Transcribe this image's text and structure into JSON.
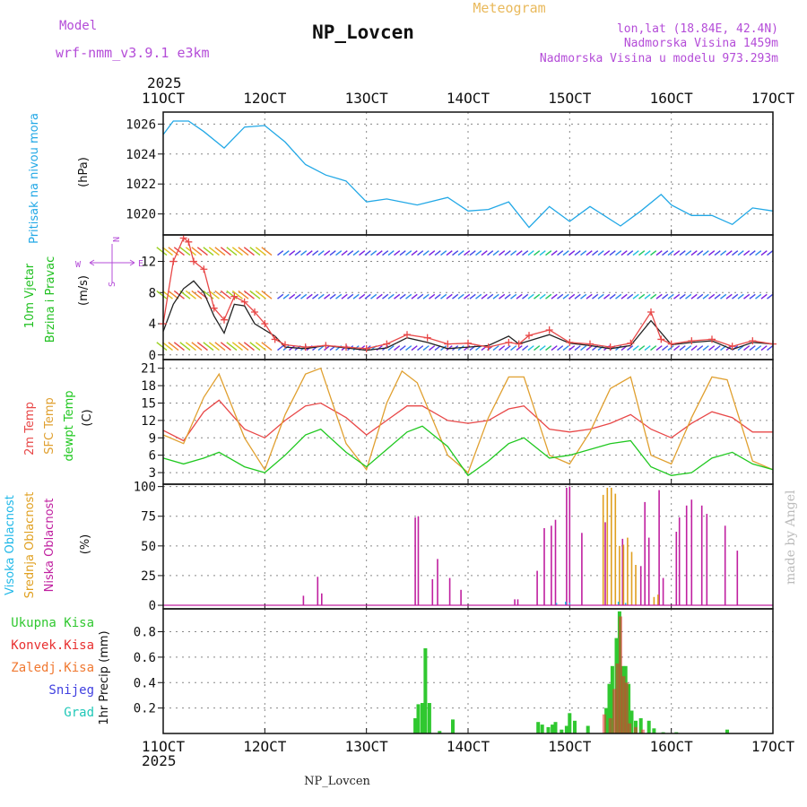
{
  "header": {
    "model_label": "Model",
    "model_name": "wrf-nmm_v3.9.1 e3km",
    "station": "NP_Lovcen",
    "chart_type": "Meteogram",
    "lonlat": "lon,lat (18.84E, 42.4N)",
    "elevation": "Nadmorska Visina 1459m",
    "model_elevation": "Nadmorska Visina u modelu 973.293m",
    "year": "2025",
    "footer_station": "NP_Lovcen",
    "credit": "made by Angel"
  },
  "colors": {
    "purple": "#b44cd8",
    "orange": "#e9b95b",
    "pressure": "#22a8e6",
    "temp2m": "#e84848",
    "sfc": "#e0a030",
    "dew": "#20c820",
    "cloud_high": "#20b8e8",
    "cloud_mid": "#e0a020",
    "cloud_low": "#c020a0",
    "rain_total": "#30c830",
    "rain_conv": "#e83030",
    "rain_frozen": "#f07830",
    "snow": "#4040e0",
    "graupel": "#20c8b8"
  },
  "chart_data": [
    {
      "id": "pressure",
      "type": "line",
      "ylabel": [
        "Pritisak na nivou mora"
      ],
      "unit": "(hPa)",
      "ylim": [
        1018.6,
        1026.8
      ],
      "yticks": [
        1020,
        1022,
        1024,
        1026
      ],
      "series": [
        {
          "name": "Sea level pressure",
          "color": "#22a8e6",
          "x": [
            11.0,
            11.1,
            11.25,
            11.4,
            11.6,
            11.8,
            12.0,
            12.2,
            12.4,
            12.6,
            12.8,
            13.0,
            13.2,
            13.5,
            13.8,
            14.0,
            14.2,
            14.4,
            14.6,
            14.8,
            15.0,
            15.2,
            15.5,
            15.7,
            15.9,
            16.0,
            16.2,
            16.4,
            16.6,
            16.8,
            17.0
          ],
          "values": [
            1025.3,
            1026.2,
            1026.2,
            1025.5,
            1024.4,
            1025.8,
            1025.9,
            1024.8,
            1023.3,
            1022.6,
            1022.2,
            1020.8,
            1021.0,
            1020.6,
            1021.1,
            1020.2,
            1020.3,
            1020.8,
            1019.1,
            1020.5,
            1019.5,
            1020.5,
            1019.2,
            1020.2,
            1021.3,
            1020.6,
            1019.9,
            1019.9,
            1019.3,
            1020.4,
            1020.2
          ]
        }
      ]
    },
    {
      "id": "wind",
      "type": "line",
      "ylabel": [
        "10m Vjetar",
        "Brzina i Pravac"
      ],
      "unit": "(m/s)",
      "compass": [
        "W",
        "N",
        "S",
        "E"
      ],
      "ylim": [
        -0.6,
        15.4
      ],
      "yticks": [
        0,
        4,
        8,
        12
      ],
      "barb_rows": [
        0.6,
        7.2,
        12.8
      ],
      "series": [
        {
          "name": "Wind speed",
          "color": "#222222",
          "x": [
            11.0,
            11.1,
            11.2,
            11.3,
            11.4,
            11.5,
            11.6,
            11.7,
            11.8,
            11.9,
            12.0,
            12.1,
            12.2,
            12.4,
            12.6,
            12.8,
            13.0,
            13.2,
            13.4,
            13.6,
            13.8,
            14.0,
            14.2,
            14.4,
            14.5,
            14.6,
            14.8,
            15.0,
            15.2,
            15.4,
            15.6,
            15.8,
            16.0,
            16.2,
            16.4,
            16.6,
            16.8,
            17.0
          ],
          "values": [
            3.0,
            6.5,
            8.5,
            9.5,
            8.0,
            5.0,
            2.8,
            6.5,
            6.3,
            4.0,
            3.2,
            2.4,
            1.0,
            0.8,
            1.2,
            0.9,
            0.6,
            0.9,
            2.2,
            1.6,
            0.8,
            1.0,
            1.2,
            2.4,
            1.4,
            1.8,
            2.6,
            1.5,
            1.2,
            0.8,
            1.2,
            4.4,
            1.3,
            1.6,
            1.8,
            0.7,
            1.6,
            1.4
          ]
        },
        {
          "name": "Wind gust",
          "color": "#e84848",
          "x": [
            11.0,
            11.1,
            11.2,
            11.25,
            11.3,
            11.4,
            11.5,
            11.6,
            11.7,
            11.8,
            11.9,
            12.0,
            12.1,
            12.2,
            12.4,
            12.6,
            12.8,
            13.0,
            13.2,
            13.4,
            13.6,
            13.8,
            14.0,
            14.2,
            14.4,
            14.5,
            14.6,
            14.8,
            15.0,
            15.2,
            15.4,
            15.6,
            15.8,
            15.9,
            16.0,
            16.2,
            16.4,
            16.6,
            16.8,
            17.0
          ],
          "values": [
            4.0,
            12.0,
            15.0,
            14.5,
            12.0,
            11.0,
            6.0,
            4.5,
            7.5,
            6.8,
            5.5,
            4.0,
            2.0,
            1.3,
            1.0,
            1.2,
            1.0,
            0.8,
            1.4,
            2.6,
            2.2,
            1.4,
            1.5,
            1.0,
            1.6,
            1.4,
            2.5,
            3.2,
            1.6,
            1.4,
            1.0,
            1.5,
            5.5,
            2.0,
            1.4,
            1.8,
            2.0,
            1.1,
            1.8,
            1.4
          ]
        }
      ]
    },
    {
      "id": "temperature",
      "type": "line",
      "ylabel": [
        "2m Temp",
        "SFC Temp",
        "dewpt Temp"
      ],
      "unit": "(C)",
      "ylim": [
        1.0,
        22.5
      ],
      "yticks": [
        3,
        6,
        9,
        12,
        15,
        18,
        21
      ],
      "series": [
        {
          "name": "2m Temp",
          "color": "#e84848",
          "x": [
            11.0,
            11.2,
            11.4,
            11.55,
            11.8,
            12.0,
            12.2,
            12.4,
            12.55,
            12.8,
            13.0,
            13.2,
            13.4,
            13.55,
            13.8,
            14.0,
            14.2,
            14.4,
            14.55,
            14.8,
            15.0,
            15.2,
            15.4,
            15.6,
            15.8,
            16.0,
            16.2,
            16.4,
            16.6,
            16.8,
            17.0
          ],
          "values": [
            10.3,
            8.5,
            13.5,
            15.5,
            10.5,
            9.0,
            12.0,
            14.5,
            15.0,
            12.5,
            9.5,
            12.0,
            14.5,
            14.5,
            12.0,
            11.5,
            12.0,
            14.0,
            14.5,
            10.5,
            10.0,
            10.5,
            11.5,
            13.0,
            10.5,
            9.0,
            11.5,
            13.5,
            12.5,
            10.0,
            10.0
          ]
        },
        {
          "name": "SFC Temp",
          "color": "#e0a030",
          "x": [
            11.0,
            11.2,
            11.4,
            11.55,
            11.8,
            12.0,
            12.2,
            12.4,
            12.55,
            12.8,
            13.0,
            13.2,
            13.35,
            13.5,
            13.8,
            14.0,
            14.2,
            14.4,
            14.55,
            14.8,
            15.0,
            15.2,
            15.4,
            15.6,
            15.8,
            16.0,
            16.2,
            16.4,
            16.55,
            16.8,
            17.0
          ],
          "values": [
            9.5,
            8.0,
            16.0,
            20.0,
            9.0,
            3.5,
            13.0,
            20.0,
            21.0,
            8.0,
            3.5,
            15.0,
            20.5,
            18.5,
            6.0,
            3.0,
            12.5,
            19.5,
            19.5,
            6.0,
            4.5,
            10.0,
            17.5,
            19.5,
            6.0,
            4.5,
            12.5,
            19.5,
            19.0,
            5.0,
            3.5
          ]
        },
        {
          "name": "Dewpt Temp",
          "color": "#20c820",
          "x": [
            11.0,
            11.2,
            11.4,
            11.55,
            11.8,
            12.0,
            12.2,
            12.4,
            12.55,
            12.8,
            13.0,
            13.2,
            13.4,
            13.55,
            13.8,
            14.0,
            14.2,
            14.4,
            14.55,
            14.8,
            15.0,
            15.2,
            15.4,
            15.6,
            15.8,
            16.0,
            16.2,
            16.4,
            16.6,
            16.8,
            17.0
          ],
          "values": [
            5.5,
            4.5,
            5.5,
            6.5,
            4.0,
            3.0,
            6.0,
            9.5,
            10.5,
            6.5,
            4.0,
            7.0,
            10.0,
            11.0,
            7.5,
            2.5,
            5.0,
            8.0,
            9.0,
            5.5,
            6.0,
            7.0,
            8.0,
            8.5,
            4.0,
            2.5,
            3.0,
            5.5,
            6.5,
            4.5,
            3.5
          ]
        }
      ]
    },
    {
      "id": "cloud",
      "type": "bar",
      "ylabel": [
        "Visoka Oblacnost",
        "Srednja Oblacnost",
        "Niska Oblacnost"
      ],
      "unit": "(%)",
      "ylim": [
        -3,
        102
      ],
      "yticks": [
        0,
        25,
        50,
        75,
        100
      ],
      "series": [
        {
          "name": "Niska Oblacnost",
          "color": "#c020a0",
          "x": [
            12.38,
            12.52,
            12.56,
            13.48,
            13.51,
            13.65,
            13.7,
            13.82,
            13.93,
            14.46,
            14.49,
            14.68,
            14.75,
            14.82,
            14.86,
            14.97,
            15.0,
            15.12,
            15.35,
            15.52,
            15.7,
            15.74,
            15.78,
            15.88,
            15.92,
            16.05,
            16.08,
            16.15,
            16.2,
            16.3,
            16.35,
            16.53,
            16.65
          ],
          "values": [
            8,
            24,
            10,
            74,
            75,
            22,
            39,
            23,
            13,
            5,
            5,
            29,
            65,
            67,
            72,
            99,
            100,
            61,
            70,
            56,
            33,
            87,
            57,
            97,
            23,
            62,
            74,
            84,
            89,
            84,
            77,
            67,
            46
          ]
        },
        {
          "name": "Srednja Oblacnost",
          "color": "#e0a020",
          "x": [
            15.33,
            15.37,
            15.41,
            15.45,
            15.49,
            15.53,
            15.57,
            15.61,
            15.65,
            15.83,
            15.87
          ],
          "values": [
            93,
            99,
            99,
            94,
            50,
            51,
            57,
            45,
            34,
            7,
            9
          ]
        },
        {
          "name": "Visoka Oblacnost",
          "color": "#20b8e8",
          "x": [
            14.87,
            14.96,
            15.0,
            15.48,
            15.55
          ],
          "values": [
            2,
            3,
            2,
            3,
            2
          ]
        }
      ]
    },
    {
      "id": "precip",
      "type": "bar",
      "ylabel": [
        "1hr Precip (mm)"
      ],
      "legend": [
        "Ukupna Kisa",
        "Konvek.Kisa",
        "Zaledj.Kisa",
        "Snijeg",
        "Grad"
      ],
      "ylim": [
        0,
        0.98
      ],
      "yticks": [
        0.2,
        0.4,
        0.6,
        0.8
      ],
      "series": [
        {
          "name": "Ukupna Kisa",
          "color": "#30c830",
          "x": [
            13.48,
            13.51,
            13.55,
            13.58,
            13.62,
            13.72,
            13.85,
            14.69,
            14.73,
            14.79,
            14.83,
            14.86,
            14.92,
            14.97,
            15.0,
            15.05,
            15.18,
            15.36,
            15.39,
            15.42,
            15.46,
            15.49,
            15.52,
            15.55,
            15.58,
            15.61,
            15.65,
            15.7,
            15.78,
            15.83,
            15.92,
            16.05,
            16.55
          ],
          "values": [
            0.12,
            0.23,
            0.24,
            0.67,
            0.24,
            0.02,
            0.11,
            0.09,
            0.07,
            0.05,
            0.07,
            0.09,
            0.03,
            0.06,
            0.16,
            0.1,
            0.06,
            0.2,
            0.39,
            0.53,
            0.75,
            0.96,
            0.53,
            0.53,
            0.39,
            0.18,
            0.1,
            0.12,
            0.1,
            0.04,
            0.01,
            0.01,
            0.03
          ]
        },
        {
          "name": "Konvek.Kisa",
          "color": "#e83030",
          "x": [
            15.34,
            15.4,
            15.44,
            15.47,
            15.5,
            15.53,
            15.56,
            15.59,
            15.65,
            15.72
          ],
          "values": [
            0.15,
            0.12,
            0.35,
            0.55,
            0.92,
            0.45,
            0.4,
            0.08,
            0.05,
            0.03
          ]
        }
      ]
    }
  ],
  "xaxis": {
    "days": [
      11,
      12,
      13,
      14,
      15,
      16,
      17
    ],
    "tick_labels": [
      "11OCT",
      "12OCT",
      "13OCT",
      "14OCT",
      "15OCT",
      "16OCT",
      "17OCT"
    ]
  }
}
